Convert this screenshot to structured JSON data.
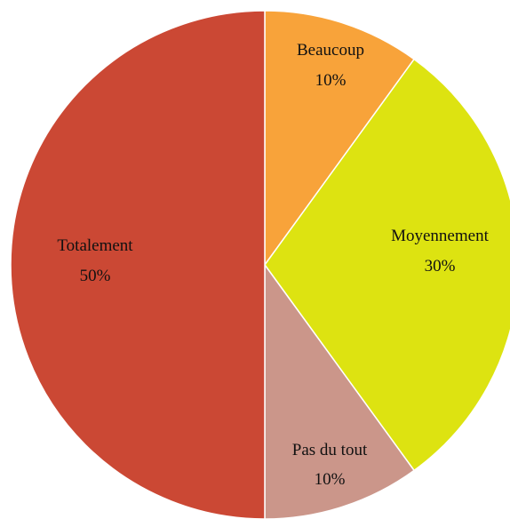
{
  "chart_data": {
    "type": "pie",
    "title": "",
    "slices": [
      {
        "label": "Beaucoup",
        "value": 10,
        "value_label": "10%",
        "color": "#F8A33A"
      },
      {
        "label": "Moyennement",
        "value": 30,
        "value_label": "30%",
        "color": "#DDE311"
      },
      {
        "label": "Pas du tout",
        "value": 10,
        "value_label": "10%",
        "color": "#CB968A"
      },
      {
        "label": "Totalement",
        "value": 50,
        "value_label": "50%",
        "color": "#CB4834"
      }
    ],
    "start_angle": "top (12 o'clock)",
    "direction": "clockwise",
    "legend": "none",
    "data_labels": "inside slices, category name with percentage"
  }
}
